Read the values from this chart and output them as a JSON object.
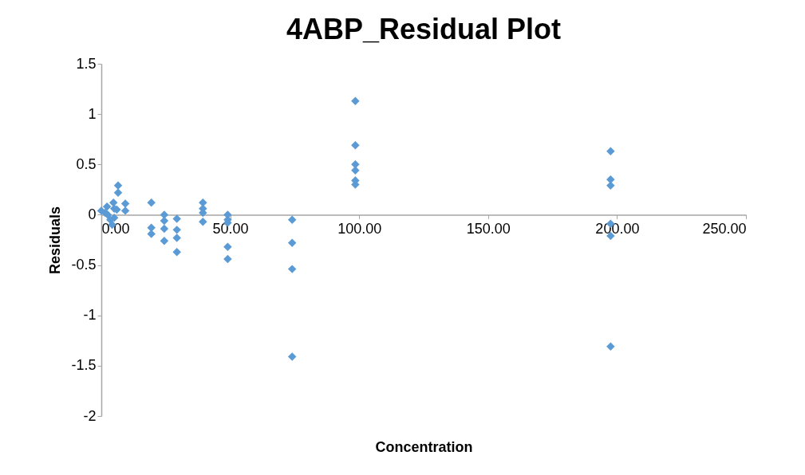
{
  "chart_data": {
    "type": "scatter",
    "title": "4ABP_Residual Plot",
    "xlabel": "Concentration",
    "ylabel": "Residuals",
    "series": [
      {
        "color": "#5b9bd5",
        "x": [
          0,
          1.5,
          2.2,
          2.5,
          3.5,
          4.2,
          4.7,
          5,
          5,
          6,
          6.5,
          6.5,
          9.3,
          9.3,
          19.4,
          19.4,
          19.4,
          24.4,
          24.4,
          24.4,
          24.4,
          29.3,
          29.3,
          29.3,
          29.3,
          39.4,
          39.4,
          39.4,
          39.4,
          49,
          49,
          49,
          49,
          49,
          74,
          74,
          74,
          74,
          98.5,
          98.5,
          98.5,
          98.5,
          98.5,
          98.5,
          197.5,
          197.5,
          197.5,
          197.5,
          197.5,
          197.5
        ],
        "values": [
          0.04,
          0.02,
          0.08,
          0.0,
          -0.05,
          -0.1,
          0.12,
          0.06,
          -0.03,
          0.05,
          0.29,
          0.22,
          0.11,
          0.04,
          0.12,
          -0.13,
          -0.19,
          0.0,
          -0.06,
          -0.14,
          -0.26,
          -0.04,
          -0.15,
          -0.23,
          -0.37,
          0.12,
          0.06,
          0.02,
          -0.07,
          0.0,
          -0.05,
          -0.08,
          -0.32,
          -0.44,
          -0.05,
          -0.28,
          -0.54,
          -1.41,
          1.13,
          0.69,
          0.5,
          0.44,
          0.34,
          0.3,
          0.63,
          0.35,
          0.29,
          -0.09,
          -0.21,
          -1.31
        ]
      }
    ],
    "marker": "diamond",
    "grid": false,
    "legend": false,
    "xlim": [
      0,
      250
    ],
    "xticks": [
      {
        "value": 0,
        "label": "0.00"
      },
      {
        "value": 50,
        "label": "50.00"
      },
      {
        "value": 100,
        "label": "100.00"
      },
      {
        "value": 150,
        "label": "150.00"
      },
      {
        "value": 200,
        "label": "200.00"
      },
      {
        "value": 250,
        "label": "250.00"
      }
    ],
    "ylim": [
      -2,
      1.5
    ],
    "yticks": [
      -2,
      -1.5,
      -1,
      -0.5,
      0,
      0.5,
      1,
      1.5
    ]
  }
}
